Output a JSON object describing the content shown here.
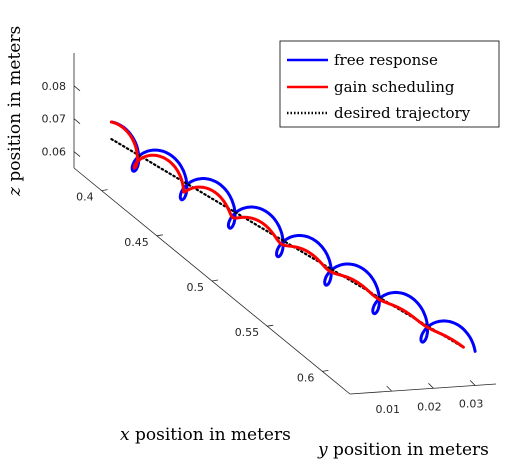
{
  "chart_data": {
    "type": "line",
    "projection": "3d",
    "title": "",
    "xlabel_var": "x",
    "xlabel_rest": " position in meters",
    "ylabel_var": "y",
    "ylabel_rest": " position in meters",
    "zlabel_var": "z",
    "zlabel_rest": " position in meters",
    "xlim": [
      0.375,
      0.625
    ],
    "ylim": [
      0.0,
      0.035
    ],
    "zlim": [
      0.055,
      0.09
    ],
    "x_ticks": [
      "0.4",
      "0.45",
      "0.5",
      "0.55",
      "0.6"
    ],
    "y_ticks": [
      "0.01",
      "0.02",
      "0.03"
    ],
    "z_ticks": [
      "0.06",
      "0.07",
      "0.08"
    ],
    "grid": false,
    "legend_position": "top-right",
    "series": [
      {
        "name": "free response",
        "color": "#0000ff",
        "style": "solid",
        "model": "helix",
        "x_range": [
          0.39,
          0.61
        ],
        "y_range": [
          0.005,
          0.031
        ],
        "z_center_range": [
          0.0675,
          0.0625
        ],
        "amplitude": 0.0052,
        "turns": 7.3
      },
      {
        "name": "gain scheduling",
        "color": "#ff0000",
        "style": "solid",
        "model": "damped-helix",
        "x_range": [
          0.39,
          0.61
        ],
        "y_range": [
          0.005,
          0.031
        ],
        "z_center_range": [
          0.0675,
          0.0625
        ],
        "amplitude": 0.0052,
        "turns": 7.3,
        "decay": 3.0
      },
      {
        "name": "desired trajectory",
        "color": "#000000",
        "style": "dotted",
        "model": "line",
        "x_range": [
          0.39,
          0.61
        ],
        "y_range": [
          0.005,
          0.031
        ],
        "z_center_range": [
          0.0675,
          0.0625
        ]
      }
    ]
  }
}
